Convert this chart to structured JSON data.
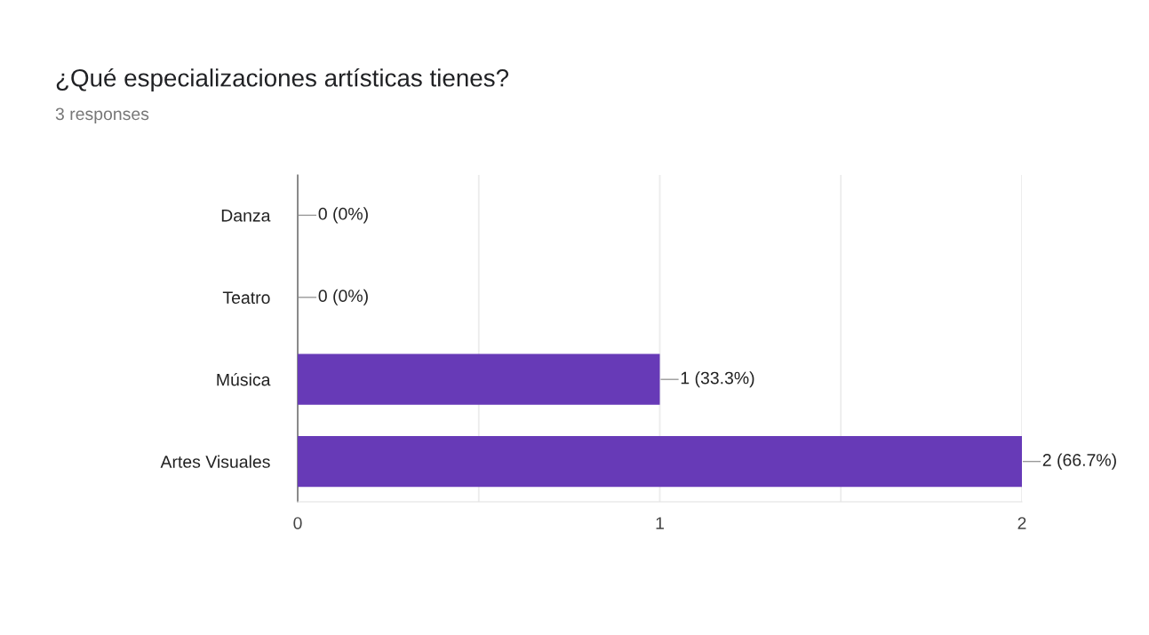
{
  "chart_data": {
    "type": "bar",
    "orientation": "horizontal",
    "title": "¿Qué especializaciones artísticas tienes?",
    "subtitle": "3 responses",
    "categories": [
      "Danza",
      "Teatro",
      "Música",
      "Artes Visuales"
    ],
    "values": [
      0,
      0,
      1,
      2
    ],
    "color": "#673ab7",
    "value_labels": [
      "0 (0%)",
      "0 (0%)",
      "1 (33.3%)",
      "2 (66.7%)"
    ],
    "xlim": [
      0,
      2
    ],
    "xticks": [
      0,
      {
        "value": 0.5,
        "label": null
      },
      1,
      {
        "value": 1.5,
        "label": null
      },
      2
    ],
    "grid": "x"
  }
}
